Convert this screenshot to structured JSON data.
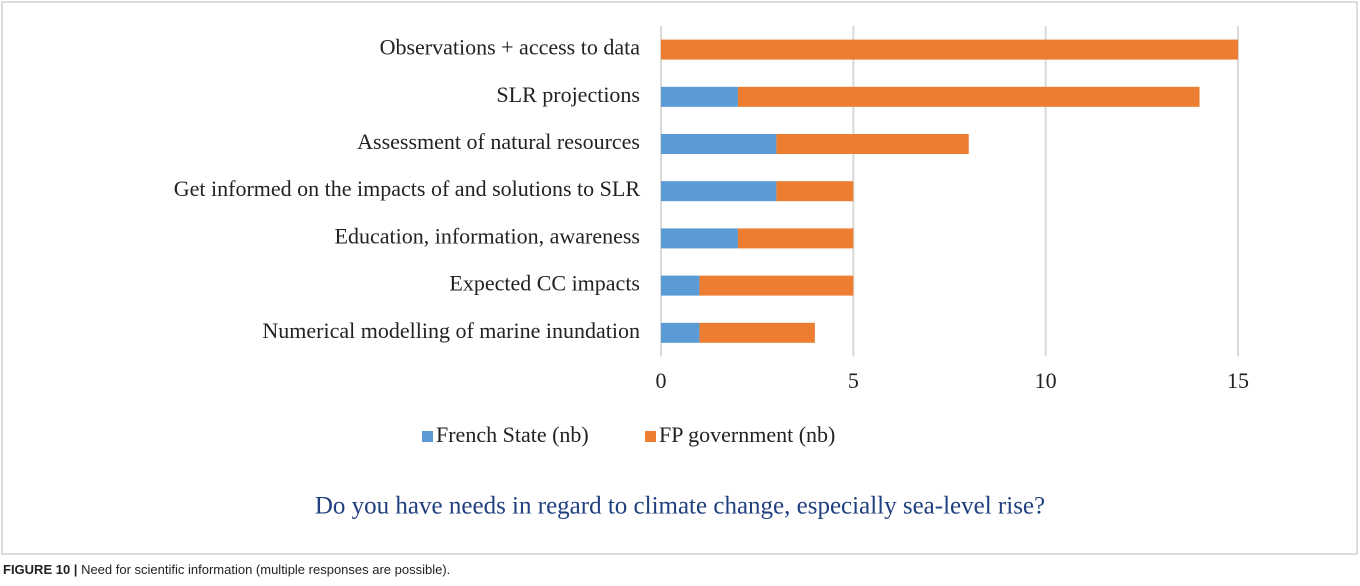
{
  "chart_data": {
    "type": "stacked_barh",
    "categories": [
      "Observations + access to data",
      "SLR projections",
      "Assessment of natural resources",
      "Get informed on the impacts of and solutions to SLR",
      "Education, information, awareness",
      "Expected CC impacts",
      "Numerical modelling of marine inundation"
    ],
    "series": [
      {
        "name": "French State (nb)",
        "color": "#5b9bd5",
        "values": [
          0,
          2,
          3,
          3,
          2,
          1,
          1
        ]
      },
      {
        "name": "FP government (nb)",
        "color": "#ed7d31",
        "values": [
          15,
          12,
          5,
          2,
          3,
          4,
          3
        ]
      }
    ],
    "xlim": [
      0,
      15
    ],
    "xticks": [
      0,
      5,
      10,
      15
    ],
    "grid": true,
    "legend": "bottom",
    "subtitle": "Do you have needs in regard to climate change, especially sea-level rise?"
  },
  "caption_label": "FIGURE 10 |",
  "caption": "Need for scientific information (multiple responses are possible)."
}
